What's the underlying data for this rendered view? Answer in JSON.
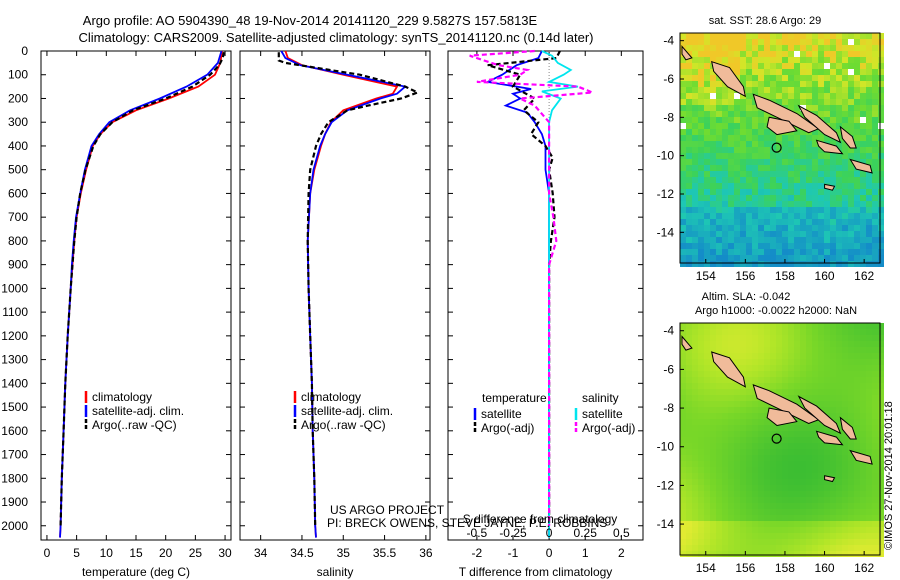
{
  "header": {
    "title_line1": "Argo profile: AO 5904390_48 19-Nov-2014 20141120_229 9.5827S 157.5813E",
    "title_line2": "Climatology: CARS2009. Satellite-adjusted climatology: synTS_20141120.nc (0.14d later)"
  },
  "colors": {
    "climatology": "#ff0000",
    "satellite": "#0000ff",
    "argo": "#000000",
    "satellite_s": "#00e5ee",
    "argo_s": "#ff00ff",
    "land": "#f0bb9a"
  },
  "chart_data": [
    {
      "id": "temperature",
      "type": "line",
      "xlabel": "temperature (deg C)",
      "ylabel": "",
      "xlim": [
        -1,
        31
      ],
      "ylim": [
        2060,
        0
      ],
      "xticks": [
        0,
        5,
        10,
        15,
        20,
        25,
        30
      ],
      "yticks": [
        0,
        100,
        200,
        300,
        400,
        500,
        600,
        700,
        800,
        900,
        1000,
        1100,
        1200,
        1300,
        1400,
        1500,
        1600,
        1700,
        1800,
        1900,
        2000
      ],
      "legend": [
        "climatology",
        "satellite-adj. clim.",
        "Argo(..raw -QC)"
      ],
      "series": [
        {
          "name": "climatology",
          "color": "#ff0000",
          "dash": "",
          "depth": [
            0,
            50,
            100,
            150,
            200,
            250,
            300,
            350,
            400,
            500,
            600,
            700,
            800,
            900,
            1000,
            1200,
            1400,
            1600,
            1800,
            2000,
            2050
          ],
          "values": [
            29.5,
            29.2,
            28.3,
            25.5,
            20.5,
            15,
            11,
            9,
            7.7,
            6.6,
            5.7,
            5,
            4.6,
            4.3,
            4,
            3.5,
            3.1,
            2.8,
            2.5,
            2.3,
            2.2
          ]
        },
        {
          "name": "satellite-adj. clim.",
          "color": "#0000ff",
          "dash": "",
          "depth": [
            0,
            50,
            100,
            150,
            200,
            250,
            300,
            350,
            400,
            500,
            600,
            700,
            800,
            900,
            1000,
            1200,
            1400,
            1600,
            1800,
            2000,
            2050
          ],
          "values": [
            29.4,
            28.8,
            27,
            23.5,
            19,
            14,
            10.5,
            8.8,
            7.5,
            6.4,
            5.6,
            4.9,
            4.5,
            4.2,
            4,
            3.5,
            3.1,
            2.8,
            2.5,
            2.3,
            2.2
          ]
        },
        {
          "name": "Argo(..raw -QC)",
          "color": "#000000",
          "dash": "5,3",
          "depth": [
            5,
            30,
            60,
            100,
            150,
            200,
            250,
            300,
            350,
            400,
            500,
            600,
            700,
            800,
            900,
            1000,
            1200,
            1400,
            1600,
            1800,
            2000
          ],
          "values": [
            29.8,
            29.6,
            29,
            27.5,
            24.5,
            20,
            14.5,
            11,
            9,
            7.8,
            6.5,
            5.6,
            5,
            4.6,
            4.3,
            4,
            3.5,
            3.1,
            2.8,
            2.5,
            2.3
          ]
        }
      ]
    },
    {
      "id": "salinity",
      "type": "line",
      "xlabel": "salinity",
      "xlim": [
        33.75,
        36.05
      ],
      "ylim": [
        2060,
        0
      ],
      "xticks": [
        34,
        34.5,
        35,
        35.5,
        36
      ],
      "legend": [
        "climatology",
        "satellite-adj. clim.",
        "Argo(..raw -QC)"
      ],
      "series": [
        {
          "name": "climatology",
          "color": "#ff0000",
          "dash": "",
          "depth": [
            0,
            30,
            60,
            100,
            150,
            180,
            200,
            250,
            300,
            350,
            400,
            500,
            600,
            800,
            1000,
            1200,
            1400,
            1600,
            1800,
            2000,
            2050
          ],
          "values": [
            34.3,
            34.33,
            34.5,
            35.0,
            35.65,
            35.6,
            35.4,
            35.0,
            34.85,
            34.78,
            34.73,
            34.65,
            34.6,
            34.57,
            34.58,
            34.6,
            34.62,
            34.63,
            34.65,
            34.66,
            34.67
          ]
        },
        {
          "name": "satellite-adj. clim.",
          "color": "#0000ff",
          "dash": "",
          "depth": [
            0,
            30,
            60,
            100,
            150,
            180,
            200,
            250,
            300,
            350,
            400,
            500,
            600,
            800,
            1000,
            1200,
            1400,
            1600,
            1800,
            2000,
            2050
          ],
          "values": [
            34.25,
            34.3,
            34.48,
            35.05,
            35.75,
            35.65,
            35.45,
            35.05,
            34.86,
            34.78,
            34.72,
            34.64,
            34.6,
            34.57,
            34.58,
            34.6,
            34.62,
            34.63,
            34.65,
            34.66,
            34.67
          ]
        },
        {
          "name": "Argo(..raw -QC)",
          "color": "#000000",
          "dash": "5,3",
          "depth": [
            5,
            40,
            50,
            100,
            150,
            175,
            200,
            230,
            250,
            300,
            350,
            400,
            500,
            600,
            800,
            1000,
            1200,
            1400,
            1600,
            1800,
            2000
          ],
          "values": [
            34.22,
            34.22,
            34.3,
            35.2,
            35.75,
            35.9,
            35.7,
            35.3,
            35.05,
            34.82,
            34.73,
            34.67,
            34.6,
            34.58,
            34.57,
            34.58,
            34.6,
            34.62,
            34.63,
            34.65,
            34.66
          ]
        }
      ]
    },
    {
      "id": "difference",
      "type": "line",
      "xlabel": "T difference from climatology",
      "xlabel_top": "S difference from climatology",
      "xlim": [
        -2.8,
        2.6
      ],
      "xticks": [
        -2,
        -1,
        0,
        1,
        2
      ],
      "s_xlim": [
        -0.7,
        0.65
      ],
      "s_xticks": [
        "-0.5",
        "-0.25",
        "0",
        "0.25",
        "0.5"
      ],
      "s_xtick_values": [
        -0.5,
        -0.25,
        0,
        0.25,
        0.5
      ],
      "ylim": [
        2060,
        0
      ],
      "legend_headers": [
        "temperature",
        "salinity"
      ],
      "legend_left": [
        "satellite",
        "Argo(-adj)"
      ],
      "legend_right": [
        "satellite",
        "Argo(-adj)"
      ],
      "series": [
        {
          "name": "T satellite",
          "axis": "T",
          "color": "#0000ff",
          "dash": "",
          "depth": [
            0,
            30,
            60,
            100,
            130,
            160,
            180,
            200,
            230,
            260,
            300,
            350,
            400,
            500,
            600,
            800,
            1000,
            1500,
            2050
          ],
          "values": [
            -0.2,
            -0.3,
            -0.9,
            -1.3,
            -1.7,
            -0.5,
            -1.0,
            -0.8,
            -1.2,
            -0.6,
            -0.4,
            -0.2,
            -0.1,
            -0.1,
            0,
            0,
            0,
            0,
            0
          ]
        },
        {
          "name": "T Argo(-adj)",
          "axis": "T",
          "color": "#000000",
          "dash": "5,3",
          "depth": [
            0,
            30,
            60,
            100,
            150,
            200,
            250,
            300,
            350,
            400,
            450,
            500,
            600,
            700,
            800,
            900,
            1000,
            1200,
            1500,
            2000
          ],
          "values": [
            0.3,
            0.2,
            -1.7,
            -0.8,
            -1.0,
            -0.4,
            -0.7,
            -0.3,
            -0.5,
            -0.1,
            0.1,
            0,
            0.1,
            0.15,
            0.05,
            0,
            0,
            0,
            0,
            0
          ]
        },
        {
          "name": "S satellite",
          "axis": "S",
          "color": "#00e5ee",
          "dash": "",
          "depth": [
            0,
            20,
            50,
            80,
            100,
            130,
            150,
            170,
            200,
            250,
            300,
            400,
            500,
            800,
            1000,
            1500,
            2050
          ],
          "values": [
            -0.05,
            0.02,
            0.06,
            0.15,
            0.1,
            0.0,
            0.2,
            -0.05,
            0.08,
            0.02,
            0.0,
            0.0,
            0.0,
            0.0,
            0.0,
            0.0,
            0.0
          ]
        },
        {
          "name": "S Argo(-adj)",
          "axis": "S",
          "color": "#ff00ff",
          "dash": "5,3",
          "depth": [
            0,
            20,
            40,
            60,
            80,
            100,
            130,
            150,
            175,
            200,
            230,
            300,
            400,
            600,
            700,
            800,
            900,
            1000,
            1200,
            1500,
            2000
          ],
          "values": [
            -0.1,
            -0.55,
            -0.45,
            -0.35,
            -0.15,
            -0.2,
            -0.5,
            0.2,
            0.3,
            -0.2,
            -0.1,
            0.0,
            0.0,
            0.0,
            0.03,
            0.05,
            0.0,
            0.0,
            0.0,
            0.0,
            0.0
          ]
        }
      ]
    },
    {
      "id": "sst_map",
      "type": "heatmap",
      "title": "sat. SST: 28.6 Argo: 29",
      "xlim": [
        152.7,
        162.8
      ],
      "ylim": [
        -15.6,
        -3.6
      ],
      "xticks": [
        154,
        156,
        158,
        160,
        162
      ],
      "yticks": [
        -4,
        -6,
        -8,
        -10,
        -12,
        -14
      ],
      "argo_position": {
        "lon": 157.58,
        "lat": -9.58
      }
    },
    {
      "id": "sla_map",
      "type": "heatmap",
      "title": "Altim. SLA: -0.042",
      "title2": "Argo h1000: -0.0022 h2000: NaN",
      "xlim": [
        152.7,
        162.8
      ],
      "ylim": [
        -15.6,
        -3.6
      ],
      "xticks": [
        154,
        156,
        158,
        160,
        162
      ],
      "yticks": [
        -4,
        -6,
        -8,
        -10,
        -12,
        -14
      ],
      "argo_position": {
        "lon": 157.58,
        "lat": -9.58
      }
    }
  ],
  "credits": {
    "line1": "US ARGO PROJECT",
    "line2": "PI: BRECK OWENS, STEVE JAYNE, P.E. ROBBINS"
  },
  "stamp": "©IMOS 27-Nov-2014 20:01:18"
}
